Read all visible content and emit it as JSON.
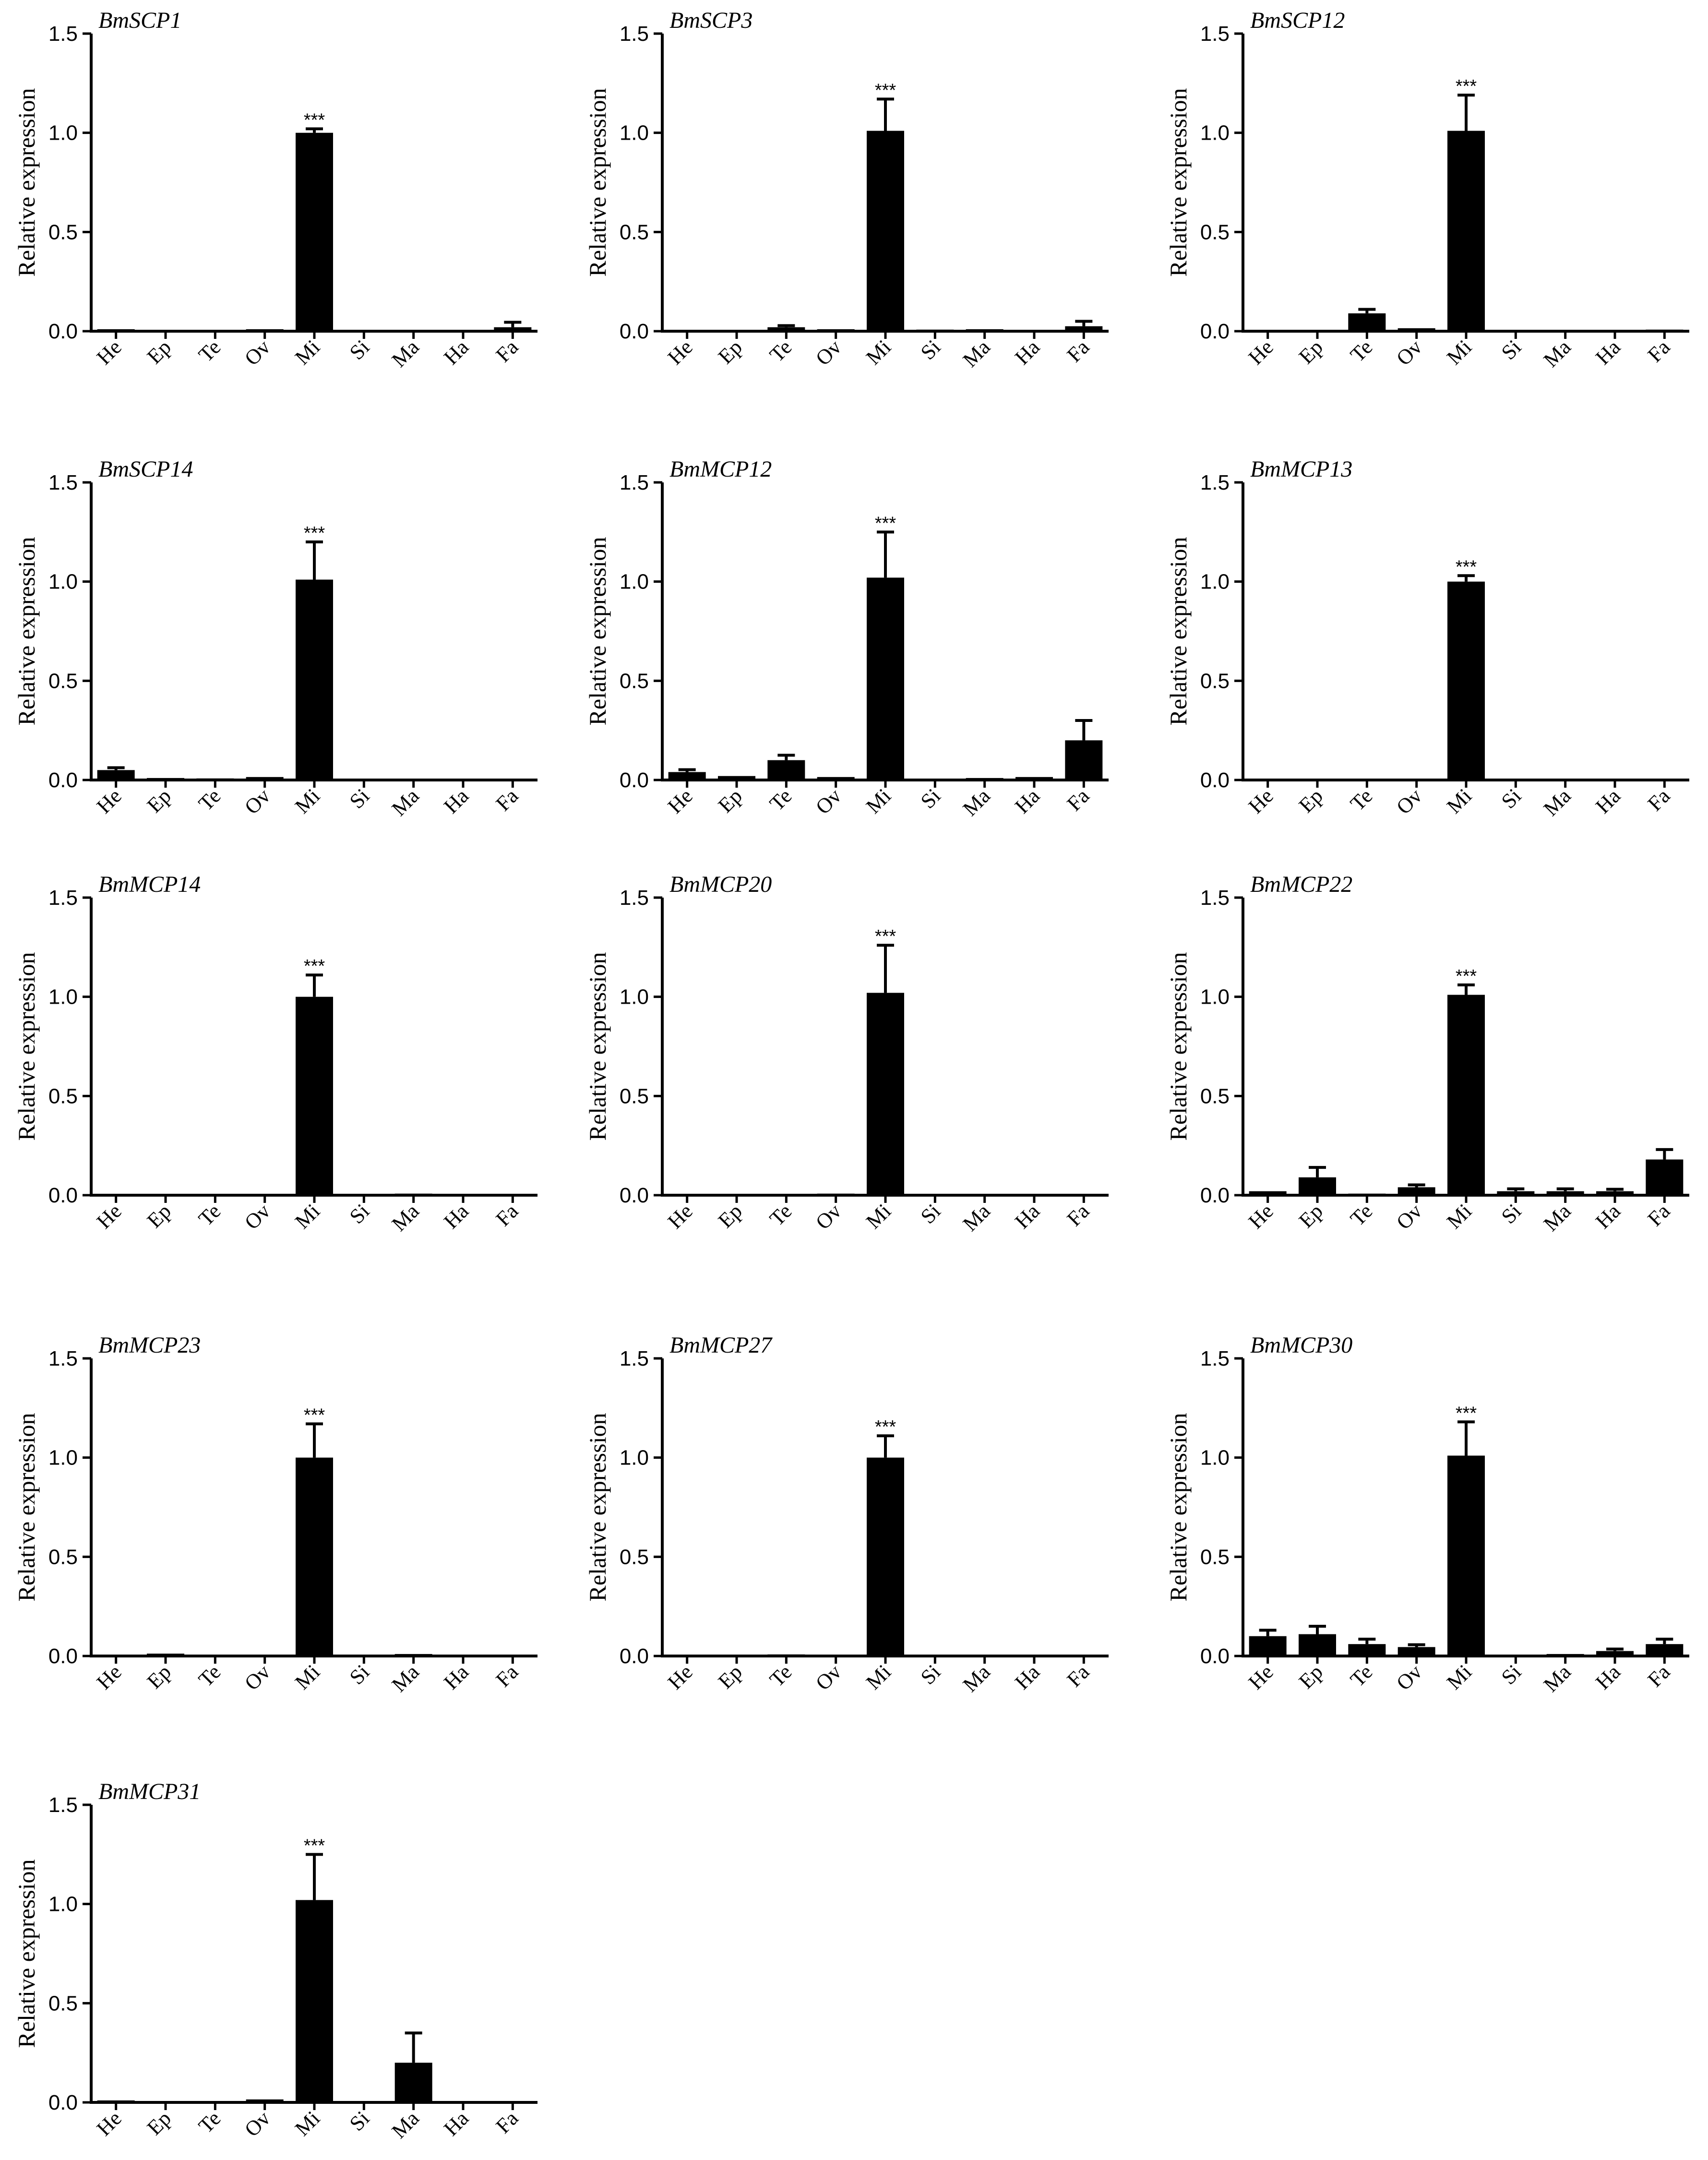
{
  "chart_data": [
    {
      "type": "bar",
      "title": "BmSCP1",
      "ylabel": "Relative expression",
      "ylim": [
        0,
        1.5
      ],
      "yticks": [
        "0.0",
        "0.5",
        "1.0",
        "1.5"
      ],
      "categories": [
        "He",
        "Ep",
        "Te",
        "Ov",
        "Mi",
        "Si",
        "Ma",
        "Ha",
        "Fa"
      ],
      "values": [
        0.01,
        0.004,
        0.005,
        0.01,
        1.0,
        0.002,
        0.005,
        0.002,
        0.02
      ],
      "errors": [
        0.004,
        0.002,
        0.002,
        0.004,
        0.02,
        0.001,
        0.002,
        0.001,
        0.025
      ],
      "significance": {
        "category": "Mi",
        "label": "***"
      }
    },
    {
      "type": "bar",
      "title": "BmSCP3",
      "ylabel": "Relative expression",
      "ylim": [
        0,
        1.5
      ],
      "yticks": [
        "0.0",
        "0.5",
        "1.0",
        "1.5"
      ],
      "categories": [
        "He",
        "Ep",
        "Te",
        "Ov",
        "Mi",
        "Si",
        "Ma",
        "Ha",
        "Fa"
      ],
      "values": [
        0.004,
        0.002,
        0.02,
        0.01,
        1.01,
        0.008,
        0.01,
        0.002,
        0.025
      ],
      "errors": [
        0.002,
        0.001,
        0.008,
        0.004,
        0.16,
        0.002,
        0.004,
        0.001,
        0.025
      ],
      "significance": {
        "category": "Mi",
        "label": "***"
      }
    },
    {
      "type": "bar",
      "title": "BmSCP12",
      "ylabel": "Relative expression",
      "ylim": [
        0,
        1.5
      ],
      "yticks": [
        "0.0",
        "0.5",
        "1.0",
        "1.5"
      ],
      "categories": [
        "He",
        "Ep",
        "Te",
        "Ov",
        "Mi",
        "Si",
        "Ma",
        "Ha",
        "Fa"
      ],
      "values": [
        0.001,
        0.001,
        0.09,
        0.015,
        1.01,
        0.005,
        0.005,
        0.001,
        0.008
      ],
      "errors": [
        0.001,
        0.001,
        0.02,
        0.005,
        0.18,
        0.002,
        0.002,
        0.001,
        0.002
      ],
      "significance": {
        "category": "Mi",
        "label": "***"
      }
    },
    {
      "type": "bar",
      "title": "BmSCP14",
      "ylabel": "Relative expression",
      "ylim": [
        0,
        1.5
      ],
      "yticks": [
        "0.0",
        "0.5",
        "1.0",
        "1.5"
      ],
      "categories": [
        "He",
        "Ep",
        "Te",
        "Ov",
        "Mi",
        "Si",
        "Ma",
        "Ha",
        "Fa"
      ],
      "values": [
        0.05,
        0.01,
        0.008,
        0.015,
        1.01,
        0.002,
        0.005,
        0.002,
        0.006
      ],
      "errors": [
        0.012,
        0.003,
        0.002,
        0.006,
        0.19,
        0.001,
        0.002,
        0.001,
        0.002
      ],
      "significance": {
        "category": "Mi",
        "label": "***"
      }
    },
    {
      "type": "bar",
      "title": "BmMCP12",
      "ylabel": "Relative expression",
      "ylim": [
        0,
        1.5
      ],
      "yticks": [
        "0.0",
        "0.5",
        "1.0",
        "1.5"
      ],
      "categories": [
        "He",
        "Ep",
        "Te",
        "Ov",
        "Mi",
        "Si",
        "Ma",
        "Ha",
        "Fa"
      ],
      "values": [
        0.04,
        0.02,
        0.1,
        0.015,
        1.02,
        0.005,
        0.01,
        0.015,
        0.2
      ],
      "errors": [
        0.012,
        0.006,
        0.025,
        0.006,
        0.23,
        0.002,
        0.003,
        0.005,
        0.1
      ],
      "significance": {
        "category": "Mi",
        "label": "***"
      }
    },
    {
      "type": "bar",
      "title": "BmMCP13",
      "ylabel": "Relative expression",
      "ylim": [
        0,
        1.5
      ],
      "yticks": [
        "0.0",
        "0.5",
        "1.0",
        "1.5"
      ],
      "categories": [
        "He",
        "Ep",
        "Te",
        "Ov",
        "Mi",
        "Si",
        "Ma",
        "Ha",
        "Fa"
      ],
      "values": [
        0.001,
        0.001,
        0.001,
        0.003,
        1.0,
        0.001,
        0.005,
        0.001,
        0.001
      ],
      "errors": [
        0.001,
        0.001,
        0.001,
        0.001,
        0.03,
        0.001,
        0.002,
        0.001,
        0.001
      ],
      "significance": {
        "category": "Mi",
        "label": "***"
      }
    },
    {
      "type": "bar",
      "title": "BmMCP14",
      "ylabel": "Relative expression",
      "ylim": [
        0,
        1.5
      ],
      "yticks": [
        "0.0",
        "0.5",
        "1.0",
        "1.5"
      ],
      "categories": [
        "He",
        "Ep",
        "Te",
        "Ov",
        "Mi",
        "Si",
        "Ma",
        "Ha",
        "Fa"
      ],
      "values": [
        0.001,
        0.004,
        0.006,
        0.004,
        1.0,
        0.002,
        0.008,
        0.002,
        0.004
      ],
      "errors": [
        0.001,
        0.002,
        0.002,
        0.002,
        0.11,
        0.001,
        0.003,
        0.001,
        0.002
      ],
      "significance": {
        "category": "Mi",
        "label": "***"
      }
    },
    {
      "type": "bar",
      "title": "BmMCP20",
      "ylabel": "Relative expression",
      "ylim": [
        0,
        1.5
      ],
      "yticks": [
        "0.0",
        "0.5",
        "1.0",
        "1.5"
      ],
      "categories": [
        "He",
        "Ep",
        "Te",
        "Ov",
        "Mi",
        "Si",
        "Ma",
        "Ha",
        "Fa"
      ],
      "values": [
        0.001,
        0.006,
        0.002,
        0.008,
        1.02,
        0.002,
        0.006,
        0.001,
        0.001
      ],
      "errors": [
        0.001,
        0.002,
        0.001,
        0.003,
        0.24,
        0.001,
        0.002,
        0.001,
        0.001
      ],
      "significance": {
        "category": "Mi",
        "label": "***"
      }
    },
    {
      "type": "bar",
      "title": "BmMCP22",
      "ylabel": "Relative expression",
      "ylim": [
        0,
        1.5
      ],
      "yticks": [
        "0.0",
        "0.5",
        "1.0",
        "1.5"
      ],
      "categories": [
        "He",
        "Ep",
        "Te",
        "Ov",
        "Mi",
        "Si",
        "Ma",
        "Ha",
        "Fa"
      ],
      "values": [
        0.02,
        0.09,
        0.008,
        0.04,
        1.01,
        0.02,
        0.02,
        0.02,
        0.18
      ],
      "errors": [
        0.006,
        0.05,
        0.003,
        0.012,
        0.05,
        0.012,
        0.012,
        0.01,
        0.05
      ],
      "significance": {
        "category": "Mi",
        "label": "***"
      }
    },
    {
      "type": "bar",
      "title": "BmMCP23",
      "ylabel": "Relative expression",
      "ylim": [
        0,
        1.5
      ],
      "yticks": [
        "0.0",
        "0.5",
        "1.0",
        "1.5"
      ],
      "categories": [
        "He",
        "Ep",
        "Te",
        "Ov",
        "Mi",
        "Si",
        "Ma",
        "Ha",
        "Fa"
      ],
      "values": [
        0.005,
        0.012,
        0.004,
        0.002,
        1.0,
        0.003,
        0.01,
        0.003,
        0.004
      ],
      "errors": [
        0.002,
        0.005,
        0.002,
        0.001,
        0.17,
        0.001,
        0.004,
        0.001,
        0.002
      ],
      "significance": {
        "category": "Mi",
        "label": "***"
      }
    },
    {
      "type": "bar",
      "title": "BmMCP27",
      "ylabel": "Relative expression",
      "ylim": [
        0,
        1.5
      ],
      "yticks": [
        "0.0",
        "0.5",
        "1.0",
        "1.5"
      ],
      "categories": [
        "He",
        "Ep",
        "Te",
        "Ov",
        "Mi",
        "Si",
        "Ma",
        "Ha",
        "Fa"
      ],
      "values": [
        0.001,
        0.001,
        0.008,
        0.001,
        1.0,
        0.001,
        0.004,
        0.001,
        0.001
      ],
      "errors": [
        0.001,
        0.001,
        0.003,
        0.001,
        0.11,
        0.001,
        0.002,
        0.001,
        0.001
      ],
      "significance": {
        "category": "Mi",
        "label": "***"
      }
    },
    {
      "type": "bar",
      "title": "BmMCP30",
      "ylabel": "Relative expression",
      "ylim": [
        0,
        1.5
      ],
      "yticks": [
        "0.0",
        "0.5",
        "1.0",
        "1.5"
      ],
      "categories": [
        "He",
        "Ep",
        "Te",
        "Ov",
        "Mi",
        "Si",
        "Ma",
        "Ha",
        "Fa"
      ],
      "values": [
        0.1,
        0.11,
        0.06,
        0.045,
        1.01,
        0.004,
        0.01,
        0.025,
        0.06
      ],
      "errors": [
        0.03,
        0.04,
        0.025,
        0.012,
        0.17,
        0.002,
        0.004,
        0.01,
        0.025
      ],
      "significance": {
        "category": "Mi",
        "label": "***"
      }
    },
    {
      "type": "bar",
      "title": "BmMCP31",
      "ylabel": "Relative expression",
      "ylim": [
        0,
        1.5
      ],
      "yticks": [
        "0.0",
        "0.5",
        "1.0",
        "1.5"
      ],
      "categories": [
        "He",
        "Ep",
        "Te",
        "Ov",
        "Mi",
        "Si",
        "Ma",
        "Ha",
        "Fa"
      ],
      "values": [
        0.01,
        0.001,
        0.002,
        0.015,
        1.02,
        0.001,
        0.2,
        0.001,
        0.003
      ],
      "errors": [
        0.004,
        0.001,
        0.001,
        0.005,
        0.23,
        0.001,
        0.15,
        0.001,
        0.001
      ],
      "significance": {
        "category": "Mi",
        "label": "***"
      }
    }
  ]
}
